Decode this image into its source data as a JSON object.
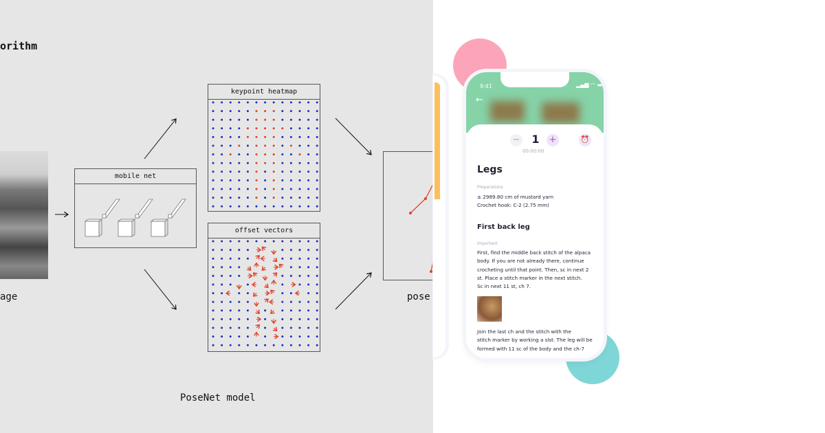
{
  "diagram": {
    "title_fragment": "orithm",
    "input_label": "age",
    "mobile_net_label": "mobile net",
    "heatmap_label": "keypoint heatmap",
    "offset_label": "offset vectors",
    "pose_label": "pose",
    "model_label": "PoseNet model",
    "grid_size": 13,
    "heatmap_red_cells": [
      [
        1,
        5
      ],
      [
        1,
        6
      ],
      [
        1,
        7
      ],
      [
        2,
        5
      ],
      [
        2,
        6
      ],
      [
        2,
        7
      ],
      [
        3,
        4
      ],
      [
        3,
        5
      ],
      [
        3,
        6
      ],
      [
        3,
        7
      ],
      [
        3,
        8
      ],
      [
        4,
        4
      ],
      [
        4,
        5
      ],
      [
        4,
        6
      ],
      [
        4,
        7
      ],
      [
        5,
        3
      ],
      [
        5,
        5
      ],
      [
        5,
        6
      ],
      [
        5,
        7
      ],
      [
        5,
        9
      ],
      [
        6,
        2
      ],
      [
        6,
        5
      ],
      [
        6,
        6
      ],
      [
        6,
        7
      ],
      [
        6,
        10
      ],
      [
        7,
        5
      ],
      [
        7,
        6
      ],
      [
        7,
        7
      ],
      [
        8,
        5
      ],
      [
        8,
        7
      ],
      [
        9,
        5
      ],
      [
        9,
        7
      ],
      [
        10,
        5
      ],
      [
        10,
        7
      ],
      [
        11,
        5
      ],
      [
        11,
        7
      ]
    ],
    "colors": {
      "background": "#e6e6e6",
      "dot": "#1a2fbf",
      "highlight": "#e0402a"
    }
  },
  "phone": {
    "status_time": "9:41",
    "counter_value": "1",
    "timer": "00:00:00",
    "section_title": "Legs",
    "preparations_label": "Preparations",
    "preparation_lines": [
      "± 2989.80 cm of mustard yarn",
      "Crochet hook: C-2 (2.75 mm)"
    ],
    "subsection_title": "First back leg",
    "important_label": "Important",
    "instruction_lines": [
      "First, find the middle back stitch of the alpaca",
      "body. If you are not already there, continue",
      "crocheting until that point. Then, sc in next 2",
      "st. Place a stitch marker in the next stitch.",
      "Sc in next 11 st, ch 7."
    ],
    "instruction2_lines": [
      "Join the last ch and the stitch with the",
      "stitch marker by working a slst. The leg will be",
      "formed with 11 sc of the body and the ch-7"
    ],
    "colors": {
      "header": "#86d3a8",
      "accent": "#9b59c9",
      "pink": "#fca5ba",
      "teal": "#7fd6d6",
      "orange": "#fbbf5e"
    }
  }
}
